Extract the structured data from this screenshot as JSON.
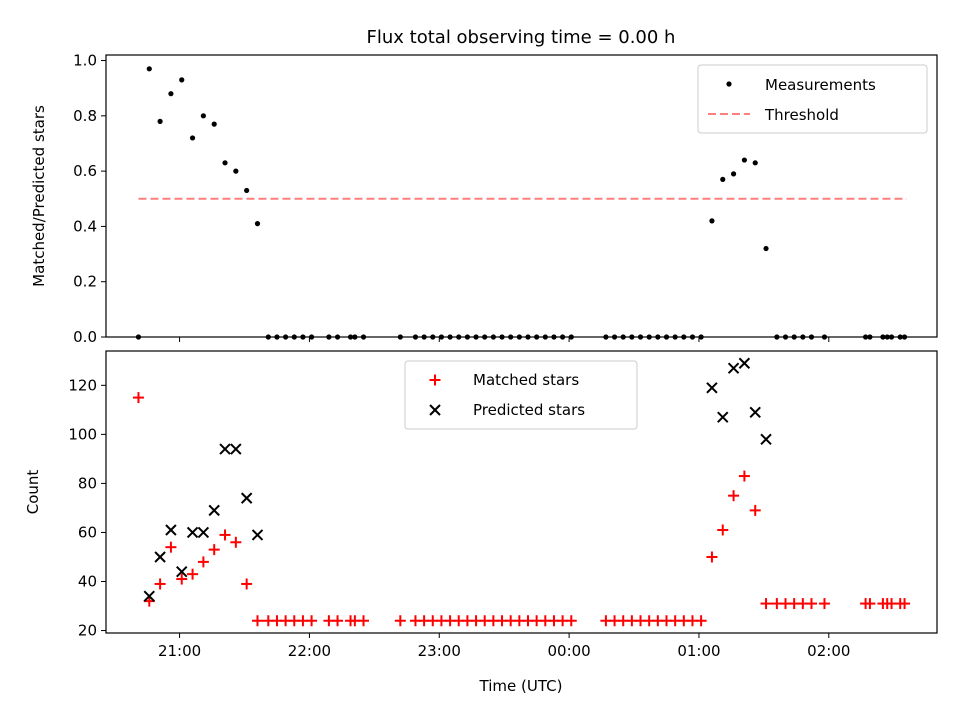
{
  "chart_data": {
    "type": "scatter",
    "title": "Flux total observing time = 0.00 h",
    "xlabel": "Time (UTC)",
    "x_ticks": [
      "21:00",
      "22:00",
      "23:00",
      "00:00",
      "01:00",
      "02:00"
    ],
    "panels": [
      {
        "ylabel": "Matched/Predicted stars",
        "ylim": [
          0,
          1.02
        ],
        "y_ticks": [
          "0.0",
          "0.2",
          "0.4",
          "0.6",
          "0.8",
          "1.0"
        ],
        "legend": [
          {
            "label": "Measurements",
            "marker": "dot",
            "color": "#000000"
          },
          {
            "label": "Threshold",
            "marker": "dashed-line",
            "color": "#ff7f7f"
          }
        ],
        "threshold": {
          "value": 0.5,
          "x_start": "20:41",
          "x_end": "02:36",
          "color": "#ff7f7f"
        },
        "series": [
          {
            "name": "Measurements",
            "color": "#000000",
            "points": [
              [
                "20:41",
                0.0
              ],
              [
                "20:46",
                0.97
              ],
              [
                "20:51",
                0.78
              ],
              [
                "20:56",
                0.88
              ],
              [
                "21:01",
                0.93
              ],
              [
                "21:06",
                0.72
              ],
              [
                "21:11",
                0.8
              ],
              [
                "21:16",
                0.77
              ],
              [
                "21:21",
                0.63
              ],
              [
                "21:26",
                0.6
              ],
              [
                "21:31",
                0.53
              ],
              [
                "21:36",
                0.41
              ],
              [
                "21:41",
                0.0
              ],
              [
                "21:45",
                0.0
              ],
              [
                "21:49",
                0.0
              ],
              [
                "21:53",
                0.0
              ],
              [
                "21:57",
                0.0
              ],
              [
                "22:01",
                0.0
              ],
              [
                "22:09",
                0.0
              ],
              [
                "22:13",
                0.0
              ],
              [
                "22:19",
                0.0
              ],
              [
                "22:21",
                0.0
              ],
              [
                "22:25",
                0.0
              ],
              [
                "22:42",
                0.0
              ],
              [
                "22:49",
                0.0
              ],
              [
                "22:53",
                0.0
              ],
              [
                "22:57",
                0.0
              ],
              [
                "23:01",
                0.0
              ],
              [
                "23:05",
                0.0
              ],
              [
                "23:09",
                0.0
              ],
              [
                "23:13",
                0.0
              ],
              [
                "23:17",
                0.0
              ],
              [
                "23:21",
                0.0
              ],
              [
                "23:25",
                0.0
              ],
              [
                "23:29",
                0.0
              ],
              [
                "23:33",
                0.0
              ],
              [
                "23:37",
                0.0
              ],
              [
                "23:41",
                0.0
              ],
              [
                "23:45",
                0.0
              ],
              [
                "23:49",
                0.0
              ],
              [
                "23:53",
                0.0
              ],
              [
                "23:57",
                0.0
              ],
              [
                "00:01",
                0.0
              ],
              [
                "00:17",
                0.0
              ],
              [
                "00:21",
                0.0
              ],
              [
                "00:25",
                0.0
              ],
              [
                "00:29",
                0.0
              ],
              [
                "00:33",
                0.0
              ],
              [
                "00:37",
                0.0
              ],
              [
                "00:41",
                0.0
              ],
              [
                "00:45",
                0.0
              ],
              [
                "00:49",
                0.0
              ],
              [
                "00:53",
                0.0
              ],
              [
                "00:57",
                0.0
              ],
              [
                "01:01",
                0.0
              ],
              [
                "01:06",
                0.42
              ],
              [
                "01:11",
                0.57
              ],
              [
                "01:16",
                0.59
              ],
              [
                "01:21",
                0.64
              ],
              [
                "01:26",
                0.63
              ],
              [
                "01:31",
                0.32
              ],
              [
                "01:36",
                0.0
              ],
              [
                "01:40",
                0.0
              ],
              [
                "01:44",
                0.0
              ],
              [
                "01:48",
                0.0
              ],
              [
                "01:52",
                0.0
              ],
              [
                "01:58",
                0.0
              ],
              [
                "02:17",
                0.0
              ],
              [
                "02:19",
                0.0
              ],
              [
                "02:25",
                0.0
              ],
              [
                "02:27",
                0.0
              ],
              [
                "02:29",
                0.0
              ],
              [
                "02:33",
                0.0
              ],
              [
                "02:35",
                0.0
              ]
            ]
          }
        ]
      },
      {
        "ylabel": "Count",
        "ylim": [
          19,
          134
        ],
        "y_ticks": [
          "20",
          "40",
          "60",
          "80",
          "100",
          "120"
        ],
        "legend": [
          {
            "label": "Matched stars",
            "marker": "plus",
            "color": "#ff0000"
          },
          {
            "label": "Predicted stars",
            "marker": "x",
            "color": "#000000"
          }
        ],
        "series": [
          {
            "name": "Matched stars",
            "color": "#ff0000",
            "marker": "plus",
            "points": [
              [
                "20:41",
                115
              ],
              [
                "20:46",
                32
              ],
              [
                "20:51",
                39
              ],
              [
                "20:56",
                54
              ],
              [
                "21:01",
                41
              ],
              [
                "21:06",
                43
              ],
              [
                "21:11",
                48
              ],
              [
                "21:16",
                53
              ],
              [
                "21:21",
                59
              ],
              [
                "21:26",
                56
              ],
              [
                "21:31",
                39
              ],
              [
                "21:36",
                24
              ],
              [
                "21:41",
                24
              ],
              [
                "21:45",
                24
              ],
              [
                "21:49",
                24
              ],
              [
                "21:53",
                24
              ],
              [
                "21:57",
                24
              ],
              [
                "22:01",
                24
              ],
              [
                "22:09",
                24
              ],
              [
                "22:13",
                24
              ],
              [
                "22:19",
                24
              ],
              [
                "22:21",
                24
              ],
              [
                "22:25",
                24
              ],
              [
                "22:42",
                24
              ],
              [
                "22:49",
                24
              ],
              [
                "22:53",
                24
              ],
              [
                "22:57",
                24
              ],
              [
                "23:01",
                24
              ],
              [
                "23:05",
                24
              ],
              [
                "23:09",
                24
              ],
              [
                "23:13",
                24
              ],
              [
                "23:17",
                24
              ],
              [
                "23:21",
                24
              ],
              [
                "23:25",
                24
              ],
              [
                "23:29",
                24
              ],
              [
                "23:33",
                24
              ],
              [
                "23:37",
                24
              ],
              [
                "23:41",
                24
              ],
              [
                "23:45",
                24
              ],
              [
                "23:49",
                24
              ],
              [
                "23:53",
                24
              ],
              [
                "23:57",
                24
              ],
              [
                "00:01",
                24
              ],
              [
                "00:17",
                24
              ],
              [
                "00:21",
                24
              ],
              [
                "00:25",
                24
              ],
              [
                "00:29",
                24
              ],
              [
                "00:33",
                24
              ],
              [
                "00:37",
                24
              ],
              [
                "00:41",
                24
              ],
              [
                "00:45",
                24
              ],
              [
                "00:49",
                24
              ],
              [
                "00:53",
                24
              ],
              [
                "00:57",
                24
              ],
              [
                "01:01",
                24
              ],
              [
                "01:06",
                50
              ],
              [
                "01:11",
                61
              ],
              [
                "01:16",
                75
              ],
              [
                "01:21",
                83
              ],
              [
                "01:26",
                69
              ],
              [
                "01:31",
                31
              ],
              [
                "01:36",
                31
              ],
              [
                "01:40",
                31
              ],
              [
                "01:44",
                31
              ],
              [
                "01:48",
                31
              ],
              [
                "01:52",
                31
              ],
              [
                "01:58",
                31
              ],
              [
                "02:17",
                31
              ],
              [
                "02:19",
                31
              ],
              [
                "02:25",
                31
              ],
              [
                "02:27",
                31
              ],
              [
                "02:29",
                31
              ],
              [
                "02:33",
                31
              ],
              [
                "02:35",
                31
              ]
            ]
          },
          {
            "name": "Predicted stars",
            "color": "#000000",
            "marker": "x",
            "points": [
              [
                "20:46",
                34
              ],
              [
                "20:51",
                50
              ],
              [
                "20:56",
                61
              ],
              [
                "21:01",
                44
              ],
              [
                "21:06",
                60
              ],
              [
                "21:11",
                60
              ],
              [
                "21:16",
                69
              ],
              [
                "21:21",
                94
              ],
              [
                "21:26",
                94
              ],
              [
                "21:31",
                74
              ],
              [
                "21:36",
                59
              ],
              [
                "01:06",
                119
              ],
              [
                "01:11",
                107
              ],
              [
                "01:16",
                127
              ],
              [
                "01:21",
                129
              ],
              [
                "01:26",
                109
              ],
              [
                "01:31",
                98
              ]
            ]
          }
        ]
      }
    ]
  }
}
